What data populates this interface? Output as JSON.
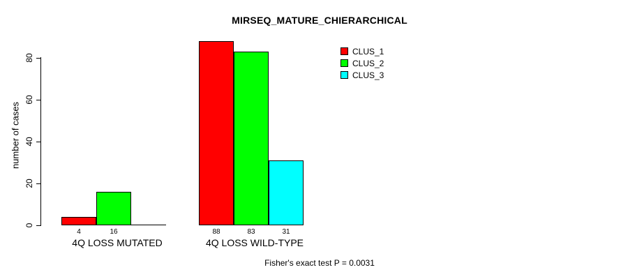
{
  "chart_data": {
    "type": "bar",
    "title": "MIRSEQ_MATURE_CHIERARCHICAL",
    "xlabel": "",
    "ylabel": "number of cases",
    "categories": [
      "4Q LOSS MUTATED",
      "4Q LOSS WILD-TYPE"
    ],
    "series": [
      {
        "name": "CLUS_1",
        "color": "#ff0000",
        "values": [
          4,
          88
        ]
      },
      {
        "name": "CLUS_2",
        "color": "#00ff00",
        "values": [
          16,
          83
        ]
      },
      {
        "name": "CLUS_3",
        "color": "#00ffff",
        "values": [
          0,
          31
        ]
      }
    ],
    "bar_value_labels": [
      [
        "4",
        "16",
        ""
      ],
      [
        "88",
        "83",
        "31"
      ]
    ],
    "yticks": [
      "0",
      "20",
      "40",
      "60",
      "80"
    ],
    "ylim": [
      0,
      80
    ],
    "grid": false,
    "legend_position": "top-right",
    "annotation": "Fisher's exact test P = 0.0031"
  }
}
